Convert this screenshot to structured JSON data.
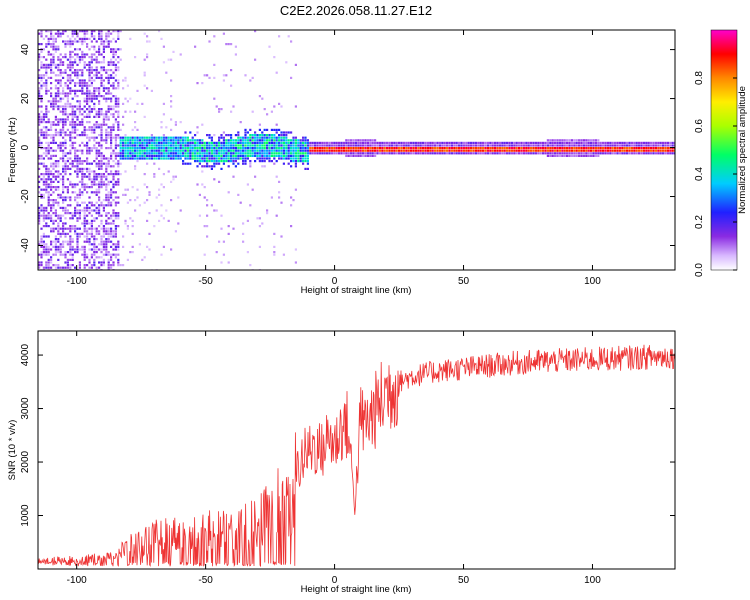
{
  "title": "C2E2.2026.058.11.27.E12",
  "chart_data": [
    {
      "type": "heatmap",
      "name": "spectrogram",
      "xlabel": "Height of straight line (km)",
      "ylabel": "Frequency (Hz)",
      "xlim": [
        -115,
        132
      ],
      "ylim": [
        -50,
        48
      ],
      "xticks": [
        -100,
        -50,
        0,
        50,
        100
      ],
      "yticks": [
        -40,
        -20,
        0,
        20,
        40
      ],
      "colorbar": {
        "label": "Normalized spectral amplitude",
        "range": [
          0.0,
          1.0
        ],
        "ticks": [
          0.0,
          0.2,
          0.4,
          0.6,
          0.8
        ]
      },
      "regions": [
        {
          "x_start": -115,
          "x_end": -84,
          "freq_spread": 48,
          "amplitude": 0.12,
          "description": "broadband noise"
        },
        {
          "x_start": -84,
          "x_end": -10,
          "freq_spread": 6,
          "amplitude": 0.3,
          "description": "widened signal band"
        },
        {
          "x_start": -10,
          "x_end": 132,
          "freq_spread": 1,
          "amplitude": 0.95,
          "description": "narrow tone near 0 Hz"
        }
      ]
    },
    {
      "type": "line",
      "name": "snr",
      "xlabel": "Height of straight line (km)",
      "ylabel": "SNR (10 * v/v)",
      "xlim": [
        -115,
        132
      ],
      "ylim": [
        0,
        4450
      ],
      "xticks": [
        -100,
        -50,
        0,
        50,
        100
      ],
      "yticks": [
        1000,
        2000,
        3000,
        4000
      ],
      "color": "#ee3333",
      "series": [
        {
          "name": "SNR",
          "x": [
            -115,
            -100,
            -85,
            -80,
            -70,
            -60,
            -50,
            -40,
            -30,
            -25,
            -20,
            -17,
            -15,
            -12,
            -8,
            -5,
            -2,
            0,
            2,
            5,
            8,
            10,
            12,
            15,
            20,
            25,
            30,
            40,
            50,
            60,
            70,
            80,
            90,
            100,
            110,
            120,
            132
          ],
          "y": [
            150,
            180,
            260,
            400,
            600,
            650,
            700,
            750,
            850,
            1100,
            1500,
            1000,
            1800,
            2100,
            2300,
            2200,
            2500,
            2300,
            2600,
            2700,
            1200,
            2800,
            2700,
            2900,
            3300,
            3500,
            3600,
            3700,
            3750,
            3800,
            3850,
            3880,
            3900,
            3920,
            3940,
            3960,
            3980
          ]
        }
      ]
    }
  ]
}
